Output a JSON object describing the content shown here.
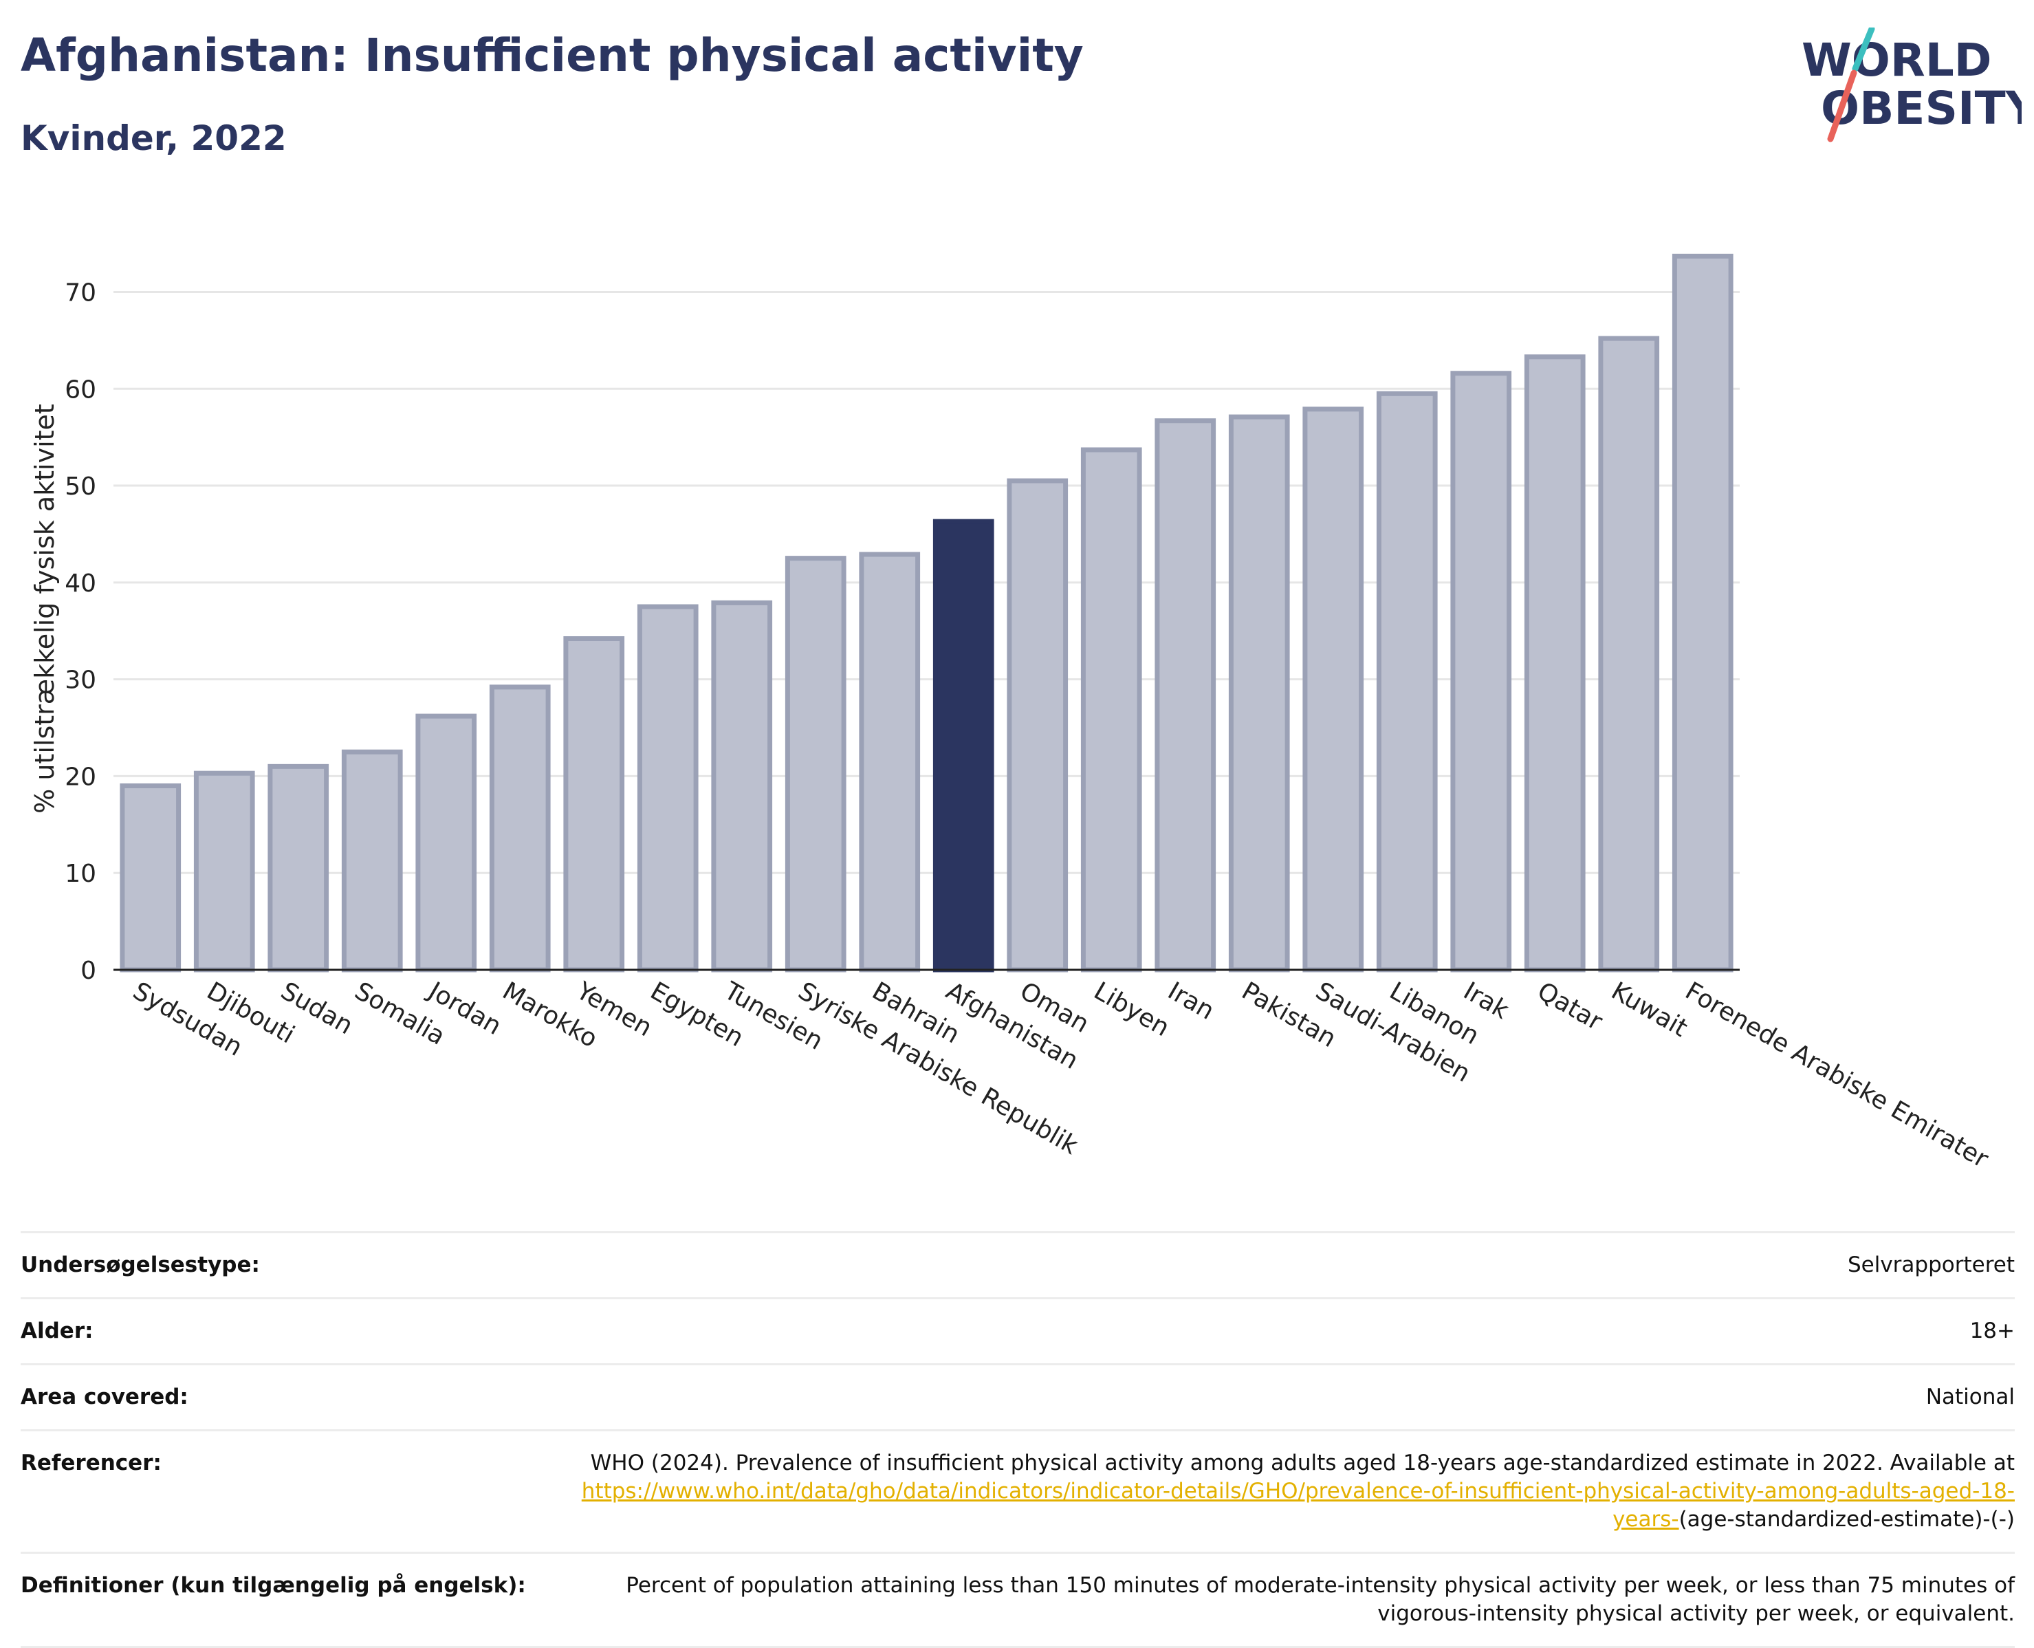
{
  "header": {
    "title": "Afghanistan: Insufficient physical activity",
    "subtitle": "Kvinder, 2022",
    "logo_line1": "WORLD",
    "logo_line2": "OBESITY"
  },
  "colors": {
    "bar": "#bcc0cf",
    "bar_border": "#9ba1b6",
    "highlight": "#2b3560",
    "title": "#2b3560",
    "link": "#e3b000",
    "logo_teal": "#3cbfbf",
    "logo_red": "#e8625a"
  },
  "chart_data": {
    "type": "bar",
    "ylabel": "% utilstrækkelig fysisk aktivitet",
    "ylim": [
      0,
      76
    ],
    "yticks": [
      0,
      10,
      20,
      30,
      40,
      50,
      60,
      70
    ],
    "grid": true,
    "highlight": "Afghanistan",
    "categories": [
      "Sydsudan",
      "Djibouti",
      "Sudan",
      "Somalia",
      "Jordan",
      "Marokko",
      "Yemen",
      "Egypten",
      "Tunesien",
      "Syriske Arabiske Republik",
      "Bahrain",
      "Afghanistan",
      "Oman",
      "Libyen",
      "Iran",
      "Pakistan",
      "Saudi-Arabien",
      "Libanon",
      "Irak",
      "Qatar",
      "Kuwait",
      "Forenede Arabiske Emirater"
    ],
    "values": [
      19.0,
      20.3,
      21.0,
      22.5,
      26.2,
      29.2,
      34.2,
      37.5,
      37.9,
      42.5,
      42.9,
      46.3,
      50.5,
      53.7,
      56.7,
      57.1,
      57.9,
      59.5,
      61.6,
      63.3,
      65.2,
      73.7
    ]
  },
  "meta": [
    {
      "label": "Undersøgelsestype:",
      "value": "Selvrapporteret"
    },
    {
      "label": "Alder:",
      "value": "18+"
    },
    {
      "label": "Area covered:",
      "value": "National"
    },
    {
      "label": "Referencer:",
      "value": "WHO (2024). Prevalence of insufficient physical activity among adults aged 18-years age-standardized estimate in 2022. Available at ",
      "link": "https://www.who.int/data/gho/data/indicators/indicator-details/GHO/prevalence-of-insufficient-physical-activity-among-adults-aged-18-years-",
      "value_after": "(age-standardized-estimate)-(-)"
    },
    {
      "label": "Definitioner (kun tilgængelig på engelsk):",
      "value": "Percent of population attaining less than 150 minutes of moderate-intensity physical activity per week, or less than 75 minutes of vigorous-intensity physical activity per week, or equivalent."
    }
  ]
}
